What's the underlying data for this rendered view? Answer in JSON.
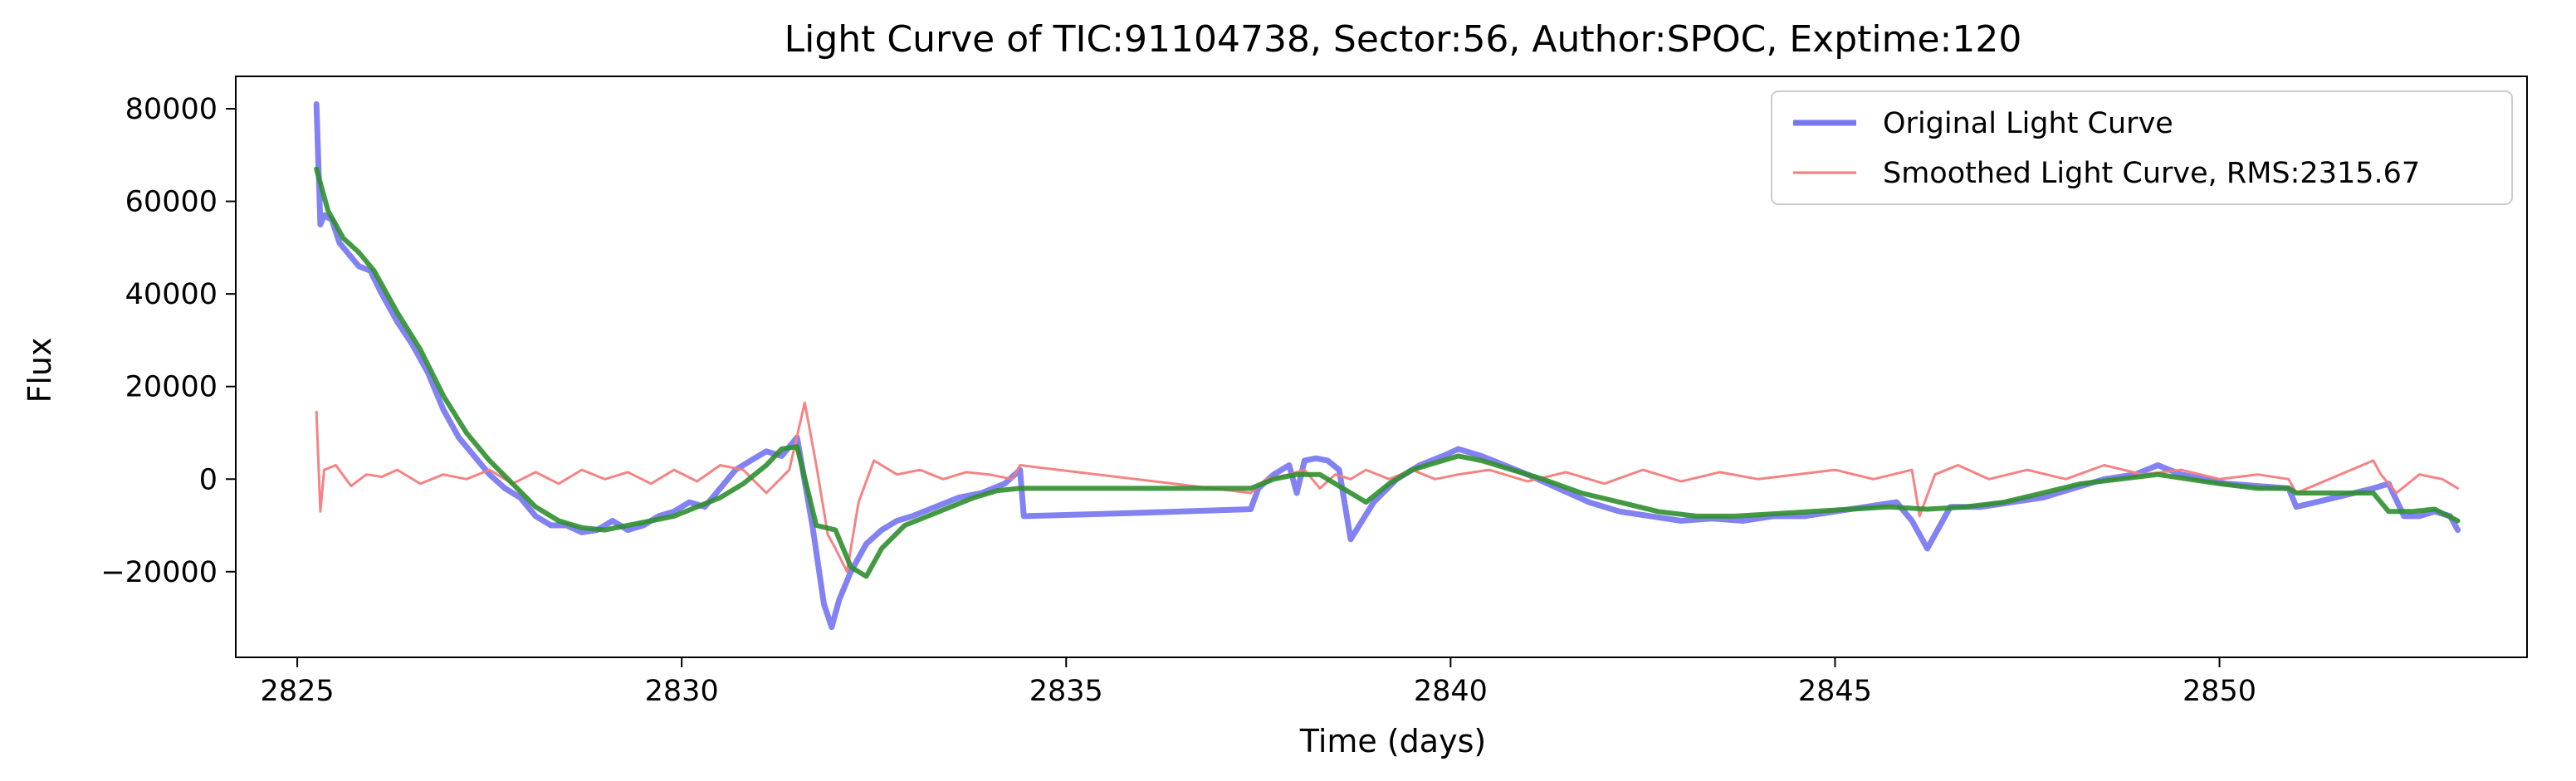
{
  "chart_data": {
    "type": "line",
    "title": "Light Curve of TIC:91104738, Sector:56, Author:SPOC, Exptime:120",
    "xlabel": "Time (days)",
    "ylabel": "Flux",
    "xlim": [
      2824.2,
      2854.0
    ],
    "ylim": [
      -38500,
      87000
    ],
    "xticks": [
      2825,
      2830,
      2835,
      2840,
      2845,
      2850
    ],
    "yticks": [
      -20000,
      0,
      20000,
      40000,
      60000,
      80000
    ],
    "xtick_labels": [
      "2825",
      "2830",
      "2835",
      "2840",
      "2845",
      "2850"
    ],
    "ytick_labels": [
      "−20000",
      "0",
      "20000",
      "40000",
      "60000",
      "80000"
    ],
    "grid": false,
    "legend_position": "top-right",
    "series": [
      {
        "name": "Original Light Curve",
        "color": "#7777f2",
        "x": [
          2825.25,
          2825.3,
          2825.35,
          2825.45,
          2825.55,
          2825.65,
          2825.8,
          2825.95,
          2826.1,
          2826.3,
          2826.5,
          2826.7,
          2826.9,
          2827.1,
          2827.3,
          2827.5,
          2827.7,
          2827.9,
          2828.1,
          2828.3,
          2828.5,
          2828.7,
          2828.9,
          2829.1,
          2829.3,
          2829.5,
          2829.7,
          2829.9,
          2830.1,
          2830.3,
          2830.5,
          2830.7,
          2830.9,
          2831.1,
          2831.3,
          2831.5,
          2831.7,
          2831.85,
          2831.95,
          2832.05,
          2832.2,
          2832.4,
          2832.6,
          2832.8,
          2833.0,
          2833.3,
          2833.6,
          2833.9,
          2834.2,
          2834.4,
          2834.45,
          2835.5,
          2836.5,
          2837.4,
          2837.5,
          2837.7,
          2837.9,
          2838.0,
          2838.1,
          2838.25,
          2838.4,
          2838.55,
          2838.7,
          2838.85,
          2839.0,
          2839.3,
          2839.6,
          2839.9,
          2840.1,
          2840.4,
          2840.7,
          2841.0,
          2841.4,
          2841.8,
          2842.2,
          2842.6,
          2843.0,
          2843.4,
          2843.8,
          2844.2,
          2844.6,
          2845.0,
          2845.4,
          2845.8,
          2846.0,
          2846.2,
          2846.5,
          2846.9,
          2847.3,
          2847.7,
          2848.1,
          2848.5,
          2848.9,
          2849.2,
          2849.5,
          2849.8,
          2850.1,
          2850.5,
          2850.9,
          2851.0,
          2851.5,
          2852.0,
          2852.2,
          2852.4,
          2852.6,
          2852.8,
          2853.0,
          2853.1
        ],
        "values": [
          81000,
          55000,
          57000,
          56000,
          51000,
          49000,
          46000,
          45000,
          40000,
          34000,
          29000,
          23000,
          15000,
          9000,
          5000,
          1000,
          -2000,
          -4000,
          -8000,
          -10000,
          -10000,
          -11500,
          -11000,
          -9000,
          -11000,
          -10000,
          -8000,
          -7000,
          -5000,
          -6000,
          -2000,
          2000,
          4000,
          6000,
          5000,
          9000,
          -10000,
          -27000,
          -32000,
          -26000,
          -20000,
          -14000,
          -11000,
          -9000,
          -8000,
          -6000,
          -4000,
          -3000,
          -1000,
          2000,
          -8000,
          -7500,
          -7000,
          -6500,
          -2000,
          1000,
          3000,
          -3000,
          4000,
          4500,
          4000,
          2000,
          -13000,
          -9000,
          -5000,
          0,
          3000,
          5000,
          6500,
          5000,
          3000,
          1000,
          -2000,
          -5000,
          -7000,
          -8000,
          -9000,
          -8500,
          -9000,
          -8000,
          -8000,
          -7000,
          -6000,
          -5000,
          -9000,
          -15000,
          -6000,
          -6000,
          -5000,
          -4000,
          -2000,
          0,
          1000,
          3000,
          1000,
          0,
          -1000,
          -1500,
          -2000,
          -6000,
          -4000,
          -2000,
          -1000,
          -8000,
          -8000,
          -7000,
          -8000,
          -11000
        ]
      },
      {
        "name": "Smoothed Light Curve, RMS:2315.67",
        "color": "#f47c7c",
        "x": [
          2825.25,
          2825.3,
          2825.35,
          2825.5,
          2825.7,
          2825.9,
          2826.1,
          2826.3,
          2826.6,
          2826.9,
          2827.2,
          2827.5,
          2827.8,
          2828.1,
          2828.4,
          2828.7,
          2829.0,
          2829.3,
          2829.6,
          2829.9,
          2830.2,
          2830.5,
          2830.8,
          2831.1,
          2831.4,
          2831.6,
          2831.75,
          2831.9,
          2832.0,
          2832.15,
          2832.3,
          2832.5,
          2832.8,
          2833.1,
          2833.4,
          2833.7,
          2834.0,
          2834.3,
          2834.4,
          2837.4,
          2837.6,
          2837.9,
          2838.1,
          2838.3,
          2838.5,
          2838.7,
          2838.9,
          2839.2,
          2839.5,
          2839.8,
          2840.1,
          2840.5,
          2841.0,
          2841.5,
          2842.0,
          2842.5,
          2843.0,
          2843.5,
          2844.0,
          2844.5,
          2845.0,
          2845.5,
          2846.0,
          2846.1,
          2846.3,
          2846.6,
          2847.0,
          2847.5,
          2848.0,
          2848.5,
          2849.0,
          2849.5,
          2850.0,
          2850.5,
          2850.9,
          2851.0,
          2852.0,
          2852.1,
          2852.3,
          2852.6,
          2852.9,
          2853.1
        ],
        "values": [
          14500,
          -7000,
          2000,
          3000,
          -1500,
          1000,
          500,
          2000,
          -1000,
          1000,
          0,
          2000,
          -1000,
          1500,
          -1000,
          2000,
          0,
          1500,
          -1000,
          2000,
          -500,
          3000,
          2000,
          -3000,
          2000,
          16500,
          3000,
          -12000,
          -15000,
          -20000,
          -5000,
          4000,
          1000,
          2000,
          0,
          1500,
          1000,
          0,
          3000,
          -3000,
          0,
          1000,
          2000,
          -2000,
          1000,
          0,
          2000,
          0,
          2000,
          0,
          1000,
          2000,
          -500,
          1500,
          -1000,
          2000,
          -500,
          1500,
          0,
          1000,
          2000,
          0,
          2000,
          -8000,
          1000,
          3000,
          0,
          2000,
          0,
          3000,
          1000,
          2000,
          0,
          1000,
          0,
          -3000,
          4000,
          1000,
          -3000,
          1000,
          0,
          -2000
        ]
      },
      {
        "name": "",
        "color": "#2f8f2f",
        "x": [
          2825.25,
          2825.4,
          2825.6,
          2825.8,
          2826.0,
          2826.3,
          2826.6,
          2826.9,
          2827.2,
          2827.5,
          2827.8,
          2828.1,
          2828.4,
          2828.7,
          2829.0,
          2829.3,
          2829.6,
          2829.9,
          2830.2,
          2830.5,
          2830.8,
          2831.1,
          2831.3,
          2831.5,
          2831.75,
          2832.0,
          2832.2,
          2832.4,
          2832.6,
          2832.9,
          2833.2,
          2833.5,
          2833.8,
          2834.1,
          2834.4,
          2837.4,
          2837.7,
          2838.0,
          2838.3,
          2838.6,
          2838.9,
          2839.2,
          2839.5,
          2839.8,
          2840.1,
          2840.4,
          2840.8,
          2841.2,
          2841.7,
          2842.2,
          2842.7,
          2843.2,
          2843.7,
          2844.2,
          2844.7,
          2845.2,
          2845.7,
          2846.2,
          2846.7,
          2847.2,
          2847.7,
          2848.2,
          2848.7,
          2849.2,
          2849.6,
          2850.0,
          2850.5,
          2850.9,
          2851.0,
          2852.0,
          2852.2,
          2852.5,
          2852.8,
          2853.1
        ],
        "values": [
          67000,
          58000,
          52000,
          49000,
          45000,
          36000,
          28000,
          18000,
          10000,
          4000,
          -1000,
          -6000,
          -9000,
          -10500,
          -11000,
          -10000,
          -9000,
          -8000,
          -6000,
          -4000,
          -1000,
          3000,
          6500,
          7000,
          -10000,
          -11000,
          -19000,
          -21000,
          -15000,
          -10000,
          -8000,
          -6000,
          -4000,
          -2500,
          -2000,
          -2000,
          0,
          1000,
          1000,
          -2000,
          -5000,
          -1000,
          2000,
          3500,
          5000,
          4000,
          2000,
          0,
          -3000,
          -5000,
          -7000,
          -8000,
          -8000,
          -7500,
          -7000,
          -6500,
          -6000,
          -6500,
          -6000,
          -5000,
          -3000,
          -1000,
          0,
          1000,
          0,
          -1000,
          -2000,
          -2000,
          -3000,
          -3000,
          -7000,
          -7000,
          -6500,
          -9000
        ]
      }
    ]
  }
}
